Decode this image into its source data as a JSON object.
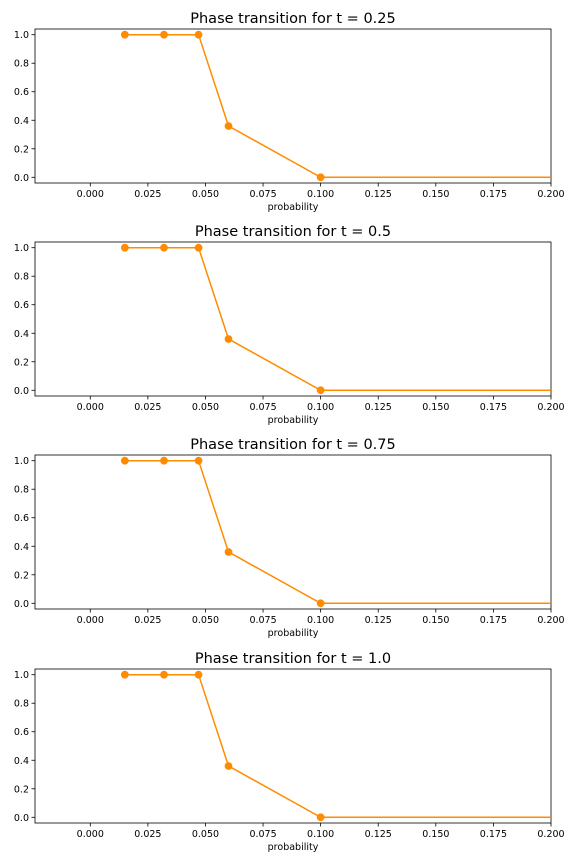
{
  "figure": {
    "background": "#ffffff",
    "series_color": "#ff8c00"
  },
  "chart_data": [
    {
      "type": "line",
      "title": "Phase transition for t = 0.25",
      "xlabel": "probability",
      "ylabel": "",
      "x": [
        0.015,
        0.032,
        0.047,
        0.06,
        0.1,
        0.2
      ],
      "series": [
        {
          "values": [
            1.0,
            1.0,
            1.0,
            0.36,
            0.0,
            0.0
          ],
          "markers": [
            true,
            true,
            true,
            true,
            true,
            false
          ]
        }
      ],
      "xlim": [
        -0.024,
        0.2
      ],
      "ylim": [
        -0.04,
        1.04
      ],
      "xticks": [
        "0.000",
        "0.025",
        "0.050",
        "0.075",
        "0.100",
        "0.125",
        "0.150",
        "0.175",
        "0.200"
      ],
      "yticks": [
        "0.0",
        "0.2",
        "0.4",
        "0.6",
        "0.8",
        "1.0"
      ],
      "grid": false,
      "legend": "none"
    },
    {
      "type": "line",
      "title": "Phase transition for t = 0.5",
      "xlabel": "probability",
      "ylabel": "",
      "x": [
        0.015,
        0.032,
        0.047,
        0.06,
        0.1,
        0.2
      ],
      "series": [
        {
          "values": [
            1.0,
            1.0,
            1.0,
            0.36,
            0.0,
            0.0
          ],
          "markers": [
            true,
            true,
            true,
            true,
            true,
            false
          ]
        }
      ],
      "xlim": [
        -0.024,
        0.2
      ],
      "ylim": [
        -0.04,
        1.04
      ],
      "xticks": [
        "0.000",
        "0.025",
        "0.050",
        "0.075",
        "0.100",
        "0.125",
        "0.150",
        "0.175",
        "0.200"
      ],
      "yticks": [
        "0.0",
        "0.2",
        "0.4",
        "0.6",
        "0.8",
        "1.0"
      ],
      "grid": false,
      "legend": "none"
    },
    {
      "type": "line",
      "title": "Phase transition for t = 0.75",
      "xlabel": "probability",
      "ylabel": "",
      "x": [
        0.015,
        0.032,
        0.047,
        0.06,
        0.1,
        0.2
      ],
      "series": [
        {
          "values": [
            1.0,
            1.0,
            1.0,
            0.36,
            0.0,
            0.0
          ],
          "markers": [
            true,
            true,
            true,
            true,
            true,
            false
          ]
        }
      ],
      "xlim": [
        -0.024,
        0.2
      ],
      "ylim": [
        -0.04,
        1.04
      ],
      "xticks": [
        "0.000",
        "0.025",
        "0.050",
        "0.075",
        "0.100",
        "0.125",
        "0.150",
        "0.175",
        "0.200"
      ],
      "yticks": [
        "0.0",
        "0.2",
        "0.4",
        "0.6",
        "0.8",
        "1.0"
      ],
      "grid": false,
      "legend": "none"
    },
    {
      "type": "line",
      "title": "Phase transition for t = 1.0",
      "xlabel": "probability",
      "ylabel": "",
      "x": [
        0.015,
        0.032,
        0.047,
        0.06,
        0.1,
        0.2
      ],
      "series": [
        {
          "values": [
            1.0,
            1.0,
            1.0,
            0.36,
            0.0,
            0.0
          ],
          "markers": [
            true,
            true,
            true,
            true,
            true,
            false
          ]
        }
      ],
      "xlim": [
        -0.024,
        0.2
      ],
      "ylim": [
        -0.04,
        1.04
      ],
      "xticks": [
        "0.000",
        "0.025",
        "0.050",
        "0.075",
        "0.100",
        "0.125",
        "0.150",
        "0.175",
        "0.200"
      ],
      "yticks": [
        "0.0",
        "0.2",
        "0.4",
        "0.6",
        "0.8",
        "1.0"
      ],
      "grid": false,
      "legend": "none"
    }
  ]
}
